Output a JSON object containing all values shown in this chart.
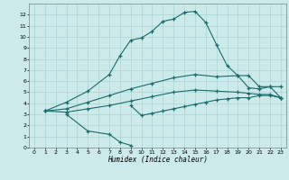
{
  "xlabel": "Humidex (Indice chaleur)",
  "bg_color": "#cceaea",
  "line_color": "#1a6b6b",
  "grid_color": "#aad4d4",
  "xlim": [
    -0.5,
    23.5
  ],
  "ylim": [
    0,
    13
  ],
  "xticks": [
    0,
    1,
    2,
    3,
    4,
    5,
    6,
    7,
    8,
    9,
    10,
    11,
    12,
    13,
    14,
    15,
    16,
    17,
    18,
    19,
    20,
    21,
    22,
    23
  ],
  "yticks": [
    0,
    1,
    2,
    3,
    4,
    5,
    6,
    7,
    8,
    9,
    10,
    11,
    12
  ],
  "line1_x": [
    1,
    3,
    5,
    7,
    8,
    9,
    10,
    11,
    12,
    13,
    14,
    15,
    16,
    17,
    18,
    19,
    20,
    21,
    22,
    23
  ],
  "line1_y": [
    3.3,
    4.1,
    5.1,
    6.6,
    8.3,
    9.7,
    9.9,
    10.5,
    11.4,
    11.6,
    12.2,
    12.3,
    11.3,
    9.3,
    7.4,
    6.5,
    5.4,
    5.3,
    5.5,
    4.5
  ],
  "line2_x": [
    1,
    3,
    5,
    7,
    9,
    11,
    13,
    15,
    17,
    19,
    20,
    21,
    22,
    23
  ],
  "line2_y": [
    3.3,
    3.5,
    4.1,
    4.7,
    5.3,
    5.8,
    6.3,
    6.6,
    6.4,
    6.5,
    6.5,
    5.5,
    5.5,
    5.5
  ],
  "line3_x": [
    1,
    3,
    5,
    7,
    9,
    11,
    13,
    15,
    17,
    19,
    20,
    21,
    22,
    23
  ],
  "line3_y": [
    3.3,
    3.2,
    3.5,
    3.8,
    4.2,
    4.6,
    5.0,
    5.2,
    5.1,
    5.0,
    4.9,
    4.8,
    4.8,
    4.5
  ],
  "line4_x": [
    3,
    5,
    7,
    8,
    9
  ],
  "line4_y": [
    3.0,
    1.5,
    1.2,
    0.5,
    0.2
  ],
  "line5_x": [
    9,
    10,
    11,
    12,
    13,
    14,
    15,
    16,
    17,
    18,
    19,
    20,
    21,
    22,
    23
  ],
  "line5_y": [
    3.8,
    2.9,
    3.1,
    3.3,
    3.5,
    3.7,
    3.9,
    4.1,
    4.3,
    4.4,
    4.5,
    4.5,
    4.7,
    4.7,
    4.5
  ]
}
